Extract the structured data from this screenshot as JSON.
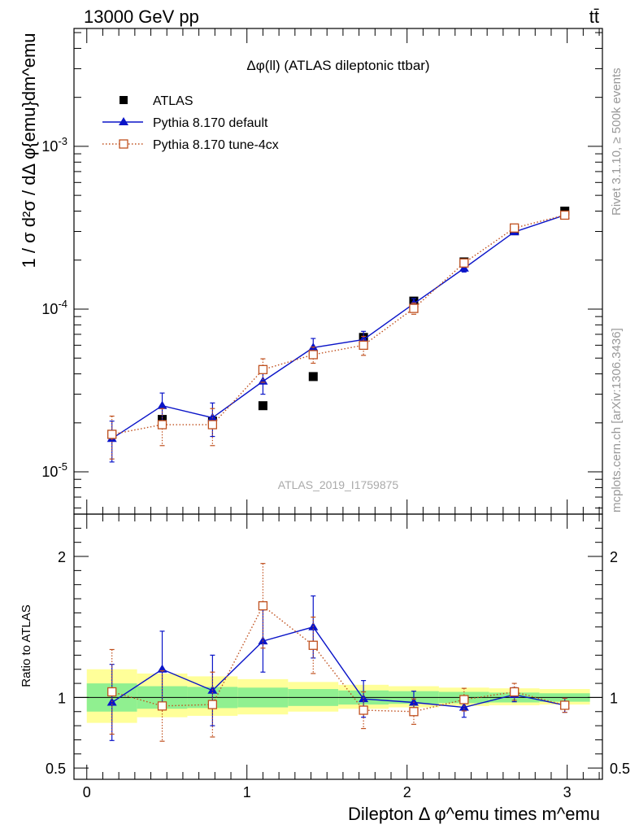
{
  "header": {
    "energy_label": "13000 GeV pp",
    "process_label": "tt̄"
  },
  "side_labels": {
    "rivet": "Rivet 3.1.10, ≥ 500k events",
    "mcplots": "mcplots.cern.ch [arXiv:1306.3436]"
  },
  "watermark": "ATLAS_2019_I1759875",
  "chart_data": [
    {
      "type": "scatter",
      "panel": "main",
      "title": "Δφ(ll) (ATLAS dileptonic ttbar)",
      "ylabel": "1 / σ  d²σ / dΔ φ{emu}dm^emu",
      "yscale": "log",
      "ylim": [
        5.5e-06,
        0.0053
      ],
      "xlim": [
        -0.08,
        3.22
      ],
      "grid": false,
      "legend_position": "top-left",
      "yticks": [
        {
          "value": 1e-05,
          "label": "10^-5"
        },
        {
          "value": 0.0001,
          "label": "10^-4"
        },
        {
          "value": 0.001,
          "label": "10^-3"
        }
      ],
      "x": [
        0.157,
        0.471,
        0.785,
        1.1,
        1.414,
        1.728,
        2.042,
        2.356,
        2.67,
        2.985
      ],
      "series": [
        {
          "name": "ATLAS",
          "color": "#000000",
          "marker": "square",
          "line": "none",
          "values": [
            1.7e-05,
            2.1e-05,
            2.05e-05,
            2.55e-05,
            3.85e-05,
            6.7e-05,
            0.000112,
            0.000195,
            0.000303,
            0.0004
          ],
          "errors": [
            1e-06,
            1.3e-06,
            1.2e-06,
            1e-06,
            1e-06,
            2.5e-06,
            3.5e-06,
            5e-06,
            7e-06,
            8e-06
          ]
        },
        {
          "name": "Pythia 8.170 default",
          "color": "#0a14c8",
          "marker": "triangle",
          "line": "solid",
          "values": [
            1.6e-05,
            2.55e-05,
            2.15e-05,
            3.6e-05,
            5.8e-05,
            6.5e-05,
            0.000108,
            0.000178,
            0.000298,
            0.000378
          ],
          "errors": [
            4.5e-06,
            5e-06,
            5e-06,
            6e-06,
            8e-06,
            8e-06,
            8e-06,
            9e-06,
            9e-06,
            1e-05
          ]
        },
        {
          "name": "Pythia 8.170 tune-4cx",
          "color": "#c0501e",
          "marker": "open-square",
          "line": "dotted",
          "values": [
            1.7e-05,
            1.95e-05,
            1.95e-05,
            4.25e-05,
            5.25e-05,
            6e-05,
            0.000101,
            0.000192,
            0.000315,
            0.000378
          ],
          "errors": [
            5e-06,
            5e-06,
            5e-06,
            7e-06,
            6e-06,
            8e-06,
            8e-06,
            9e-06,
            9e-06,
            9e-06
          ]
        }
      ]
    },
    {
      "type": "scatter",
      "panel": "ratio",
      "ylabel": "Ratio to ATLAS",
      "xlabel": "Dilepton Δ φ^emu times m^emu",
      "ylim": [
        0.42,
        2.3
      ],
      "xlim": [
        -0.08,
        3.22
      ],
      "grid": false,
      "reference_line": 1,
      "yticks": [
        {
          "value": 0.5,
          "label": "0.5"
        },
        {
          "value": 1,
          "label": "1"
        },
        {
          "value": 2,
          "label": "2"
        }
      ],
      "xticks": [
        {
          "value": 0,
          "label": "0"
        },
        {
          "value": 1,
          "label": "1"
        },
        {
          "value": 2,
          "label": "2"
        },
        {
          "value": 3,
          "label": "3"
        }
      ],
      "bin_edges": [
        0,
        0.314,
        0.628,
        0.942,
        1.257,
        1.571,
        1.885,
        2.199,
        2.513,
        2.827,
        3.142
      ],
      "band_inner": {
        "color": "#90f090",
        "lower": [
          0.9,
          0.92,
          0.925,
          0.93,
          0.94,
          0.95,
          0.955,
          0.96,
          0.965,
          0.97
        ],
        "upper": [
          1.1,
          1.08,
          1.075,
          1.07,
          1.06,
          1.05,
          1.045,
          1.04,
          1.035,
          1.03
        ]
      },
      "band_outer": {
        "color": "#ffff99",
        "lower": [
          0.82,
          0.86,
          0.87,
          0.88,
          0.9,
          0.92,
          0.93,
          0.94,
          0.945,
          0.95
        ],
        "upper": [
          1.2,
          1.17,
          1.15,
          1.13,
          1.11,
          1.09,
          1.08,
          1.07,
          1.065,
          1.06
        ]
      },
      "x": [
        0.157,
        0.471,
        0.785,
        1.1,
        1.414,
        1.728,
        2.042,
        2.356,
        2.67,
        2.985
      ],
      "series": [
        {
          "name": "Pythia 8.170 default",
          "color": "#0a14c8",
          "marker": "triangle",
          "line": "solid",
          "values": [
            0.965,
            1.2,
            1.05,
            1.4,
            1.5,
            0.99,
            0.965,
            0.93,
            1.02,
            0.945
          ],
          "errors": [
            0.27,
            0.27,
            0.25,
            0.22,
            0.22,
            0.13,
            0.08,
            0.07,
            0.05,
            0.05
          ]
        },
        {
          "name": "Pythia 8.170 tune-4cx",
          "color": "#c0501e",
          "marker": "open-square",
          "line": "dotted",
          "values": [
            1.04,
            0.94,
            0.95,
            1.65,
            1.37,
            0.91,
            0.9,
            0.985,
            1.04,
            0.945
          ],
          "errors": [
            0.3,
            0.25,
            0.23,
            0.3,
            0.2,
            0.13,
            0.09,
            0.08,
            0.06,
            0.05
          ]
        }
      ]
    }
  ]
}
